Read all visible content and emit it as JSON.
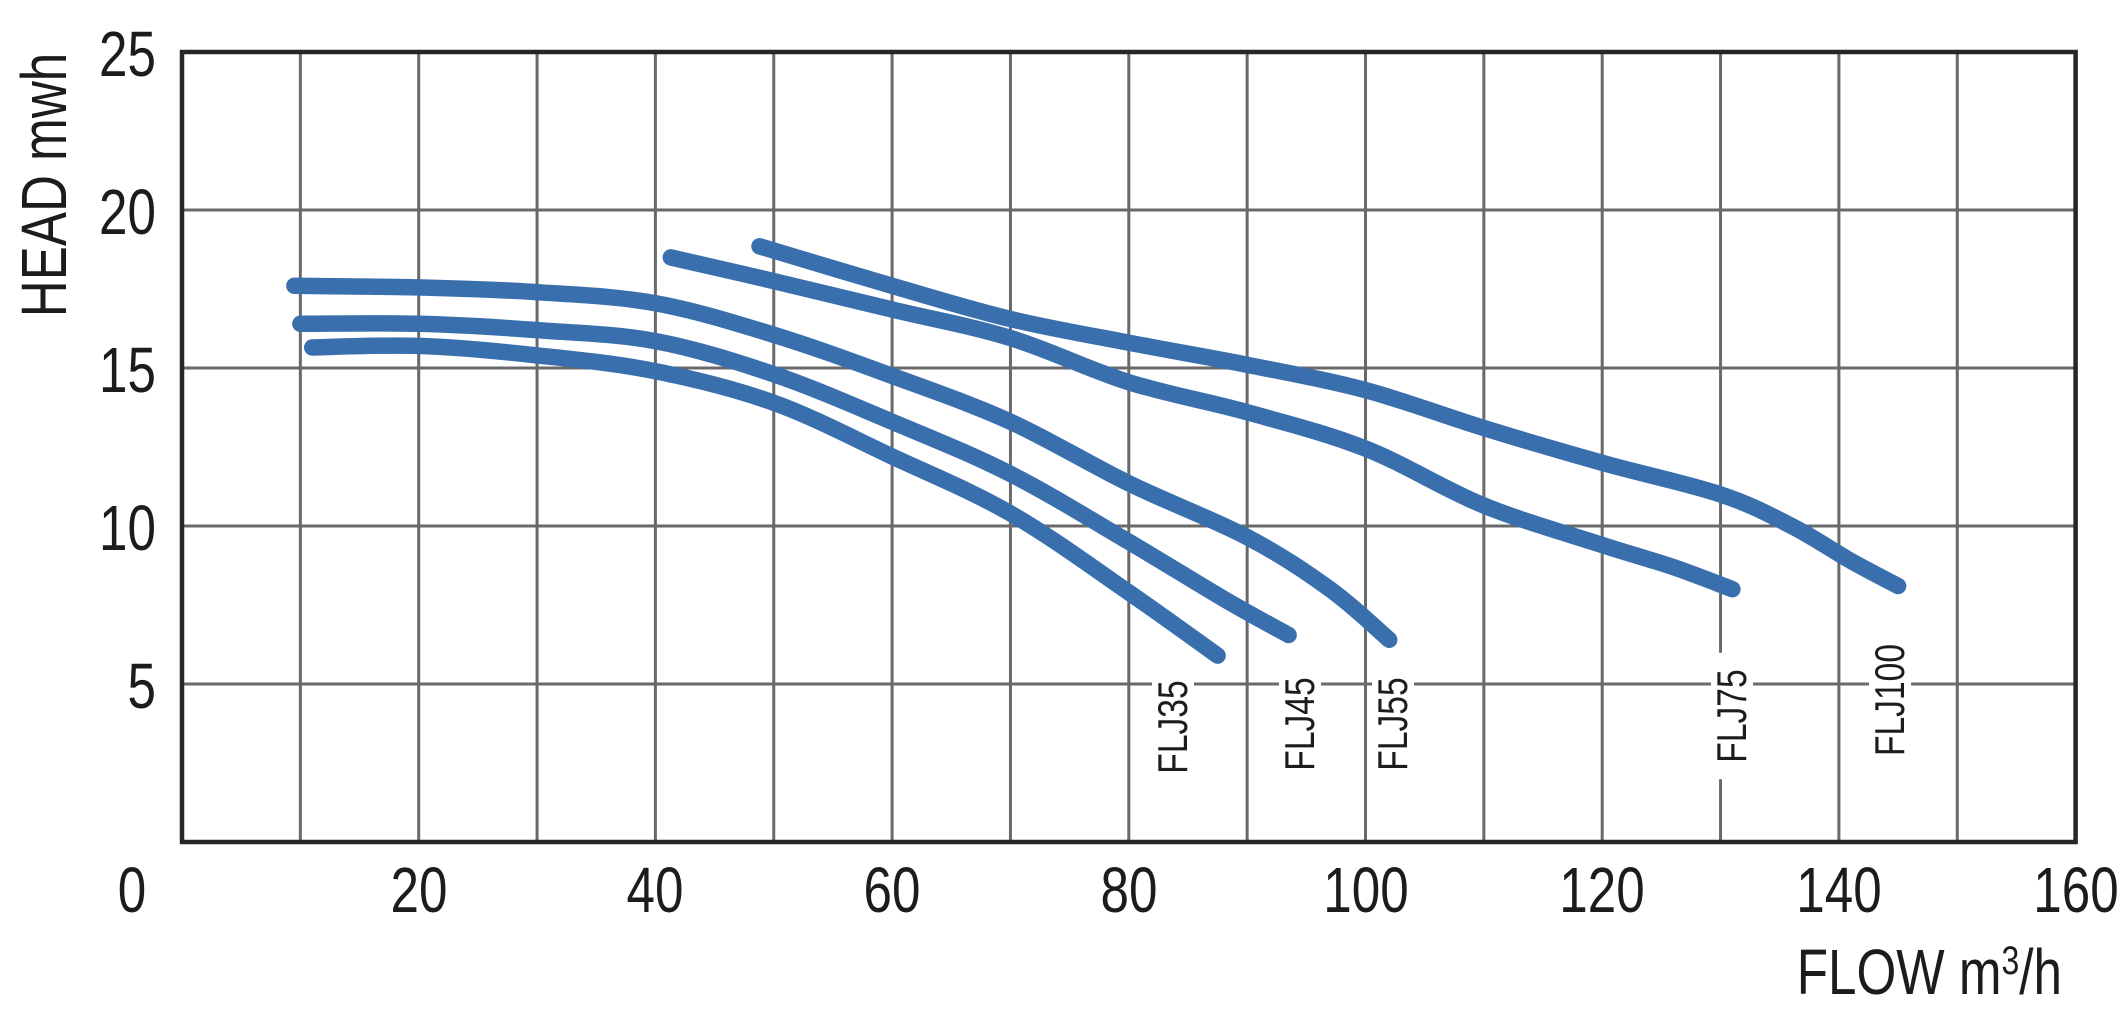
{
  "chart_data": {
    "type": "line",
    "ylabel": "HEAD mwh",
    "xlabel": {
      "text_before_sup": "FLOW m",
      "sup": "3",
      "text_after_sup": "/h",
      "full": "FLOW m3/h"
    },
    "xlim": [
      0,
      160
    ],
    "ylim": [
      0,
      25
    ],
    "x_grid_step": 10,
    "y_grid_step": 5,
    "grid": true,
    "legend_position": "curve-end-labels",
    "x_ticks": [
      {
        "value": 0,
        "label": "0"
      },
      {
        "value": 20,
        "label": "20"
      },
      {
        "value": 40,
        "label": "40"
      },
      {
        "value": 60,
        "label": "60"
      },
      {
        "value": 80,
        "label": "80"
      },
      {
        "value": 100,
        "label": "100"
      },
      {
        "value": 120,
        "label": "120"
      },
      {
        "value": 140,
        "label": "140"
      },
      {
        "value": 160,
        "label": "160"
      }
    ],
    "y_ticks": [
      {
        "value": 5,
        "label": "5"
      },
      {
        "value": 10,
        "label": "10"
      },
      {
        "value": 15,
        "label": "15"
      },
      {
        "value": 20,
        "label": "20"
      },
      {
        "value": 25,
        "label": "25"
      }
    ],
    "series": [
      {
        "name": "FLJ35",
        "label": "FLJ35",
        "label_anchor_flow": 83.7,
        "points": [
          [
            11,
            15.65
          ],
          [
            20,
            15.7
          ],
          [
            30,
            15.4
          ],
          [
            40,
            14.9
          ],
          [
            50,
            13.9
          ],
          [
            60,
            12.2
          ],
          [
            70,
            10.4
          ],
          [
            80,
            7.9
          ],
          [
            87.5,
            5.9
          ]
        ]
      },
      {
        "name": "FLJ45",
        "label": "FLJ45",
        "label_anchor_flow": 94.5,
        "points": [
          [
            10,
            16.4
          ],
          [
            20,
            16.4
          ],
          [
            30,
            16.2
          ],
          [
            40,
            15.85
          ],
          [
            50,
            14.8
          ],
          [
            60,
            13.3
          ],
          [
            70,
            11.65
          ],
          [
            80,
            9.5
          ],
          [
            88,
            7.7
          ],
          [
            93.5,
            6.55
          ]
        ]
      },
      {
        "name": "FLJ55",
        "label": "FLJ55",
        "label_anchor_flow": 102.3,
        "points": [
          [
            9.5,
            17.6
          ],
          [
            20,
            17.55
          ],
          [
            30,
            17.4
          ],
          [
            40,
            17.05
          ],
          [
            50,
            16.05
          ],
          [
            60,
            14.75
          ],
          [
            70,
            13.3
          ],
          [
            80,
            11.35
          ],
          [
            90,
            9.65
          ],
          [
            97,
            8.0
          ],
          [
            102,
            6.4
          ]
        ]
      },
      {
        "name": "FLJ75",
        "label": "FLJ75",
        "label_anchor_flow": 131.0,
        "points": [
          [
            41.3,
            18.5
          ],
          [
            50,
            17.75
          ],
          [
            60,
            16.85
          ],
          [
            70,
            15.95
          ],
          [
            80,
            14.55
          ],
          [
            90,
            13.6
          ],
          [
            100,
            12.45
          ],
          [
            110,
            10.65
          ],
          [
            120,
            9.4
          ],
          [
            126,
            8.7
          ],
          [
            131,
            8.0
          ]
        ]
      },
      {
        "name": "FLJ100",
        "label": "FLJ100",
        "label_anchor_flow": 144.3,
        "points": [
          [
            48.8,
            18.85
          ],
          [
            60,
            17.6
          ],
          [
            70,
            16.55
          ],
          [
            80,
            15.8
          ],
          [
            90,
            15.1
          ],
          [
            100,
            14.3
          ],
          [
            110,
            13.1
          ],
          [
            120,
            12.0
          ],
          [
            130,
            11.0
          ],
          [
            136,
            10.0
          ],
          [
            141,
            8.9
          ],
          [
            145,
            8.1
          ]
        ]
      }
    ],
    "style": {
      "curve_color": "#3a6fae",
      "grid_color": "#696969",
      "border_color": "#262626",
      "text_color": "#1c1c1c",
      "background": "#ffffff"
    }
  }
}
